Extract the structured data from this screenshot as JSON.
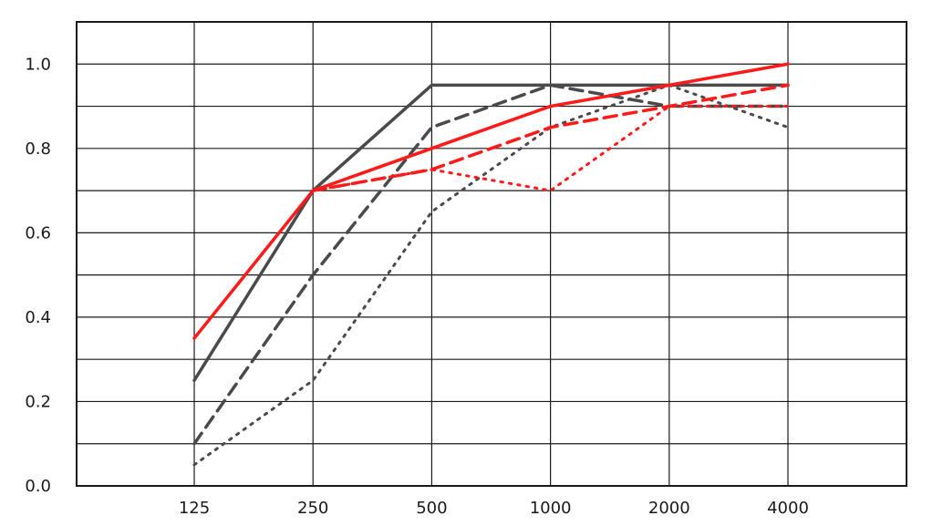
{
  "chart_data": {
    "type": "line",
    "title": "",
    "xlabel": "",
    "ylabel": "",
    "categories": [
      "125",
      "250",
      "500",
      "1000",
      "2000",
      "4000"
    ],
    "ylim": [
      0,
      1.1
    ],
    "yticks": [
      "0.0",
      "0.2",
      "0.4",
      "0.6",
      "0.8",
      "1.0"
    ],
    "grid": true,
    "legend": "none",
    "series": [
      {
        "color": "#4a4a4a",
        "dash": "solid",
        "values": [
          0.25,
          0.7,
          0.95,
          0.95,
          0.95,
          0.95
        ]
      },
      {
        "color": "#4a4a4a",
        "dash": "dashed",
        "values": [
          0.1,
          0.5,
          0.85,
          0.95,
          0.9,
          0.9
        ]
      },
      {
        "color": "#4a4a4a",
        "dash": "dotted",
        "values": [
          0.05,
          0.25,
          0.65,
          0.85,
          0.95,
          0.85
        ]
      },
      {
        "color": "#ff1a1a",
        "dash": "solid",
        "values": [
          0.35,
          0.7,
          0.8,
          0.9,
          0.95,
          1.0
        ]
      },
      {
        "color": "#ff1a1a",
        "dash": "dashed",
        "values": [
          null,
          0.7,
          0.75,
          0.85,
          0.9,
          0.95
        ]
      },
      {
        "color": "#ff1a1a",
        "dash": "dotted",
        "values": [
          null,
          0.7,
          0.75,
          0.7,
          0.9,
          0.9
        ]
      }
    ]
  }
}
